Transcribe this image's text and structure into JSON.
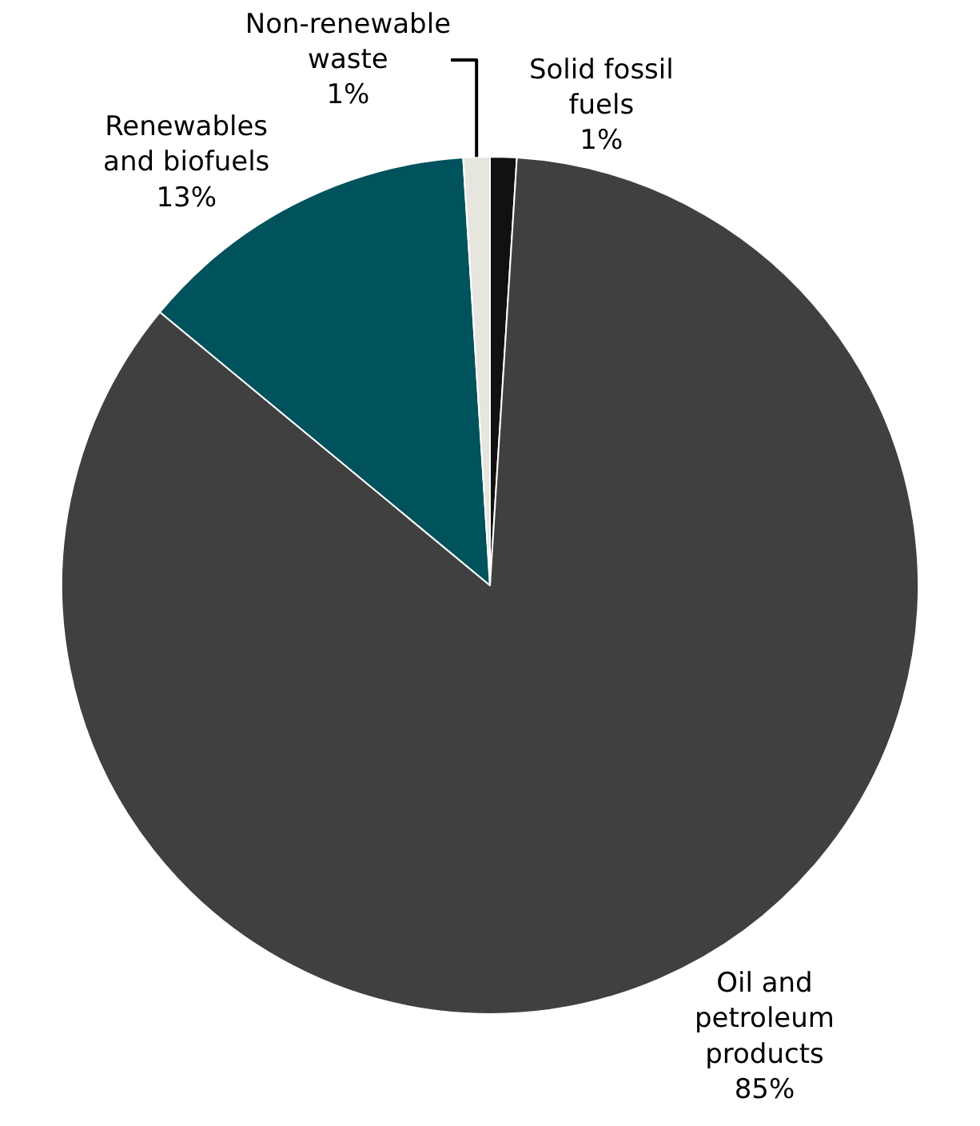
{
  "chart_data": {
    "type": "pie",
    "categories": [
      "Solid fossil fuels",
      "Oil and petroleum products",
      "Renewables and biofuels",
      "Non-renewable waste"
    ],
    "values": [
      1,
      85,
      13,
      1
    ],
    "value_labels": [
      "1%",
      "85%",
      "13%",
      "1%"
    ],
    "colors": [
      "#111111",
      "#404040",
      "#00525c",
      "#e6e6de"
    ],
    "legend": false
  }
}
